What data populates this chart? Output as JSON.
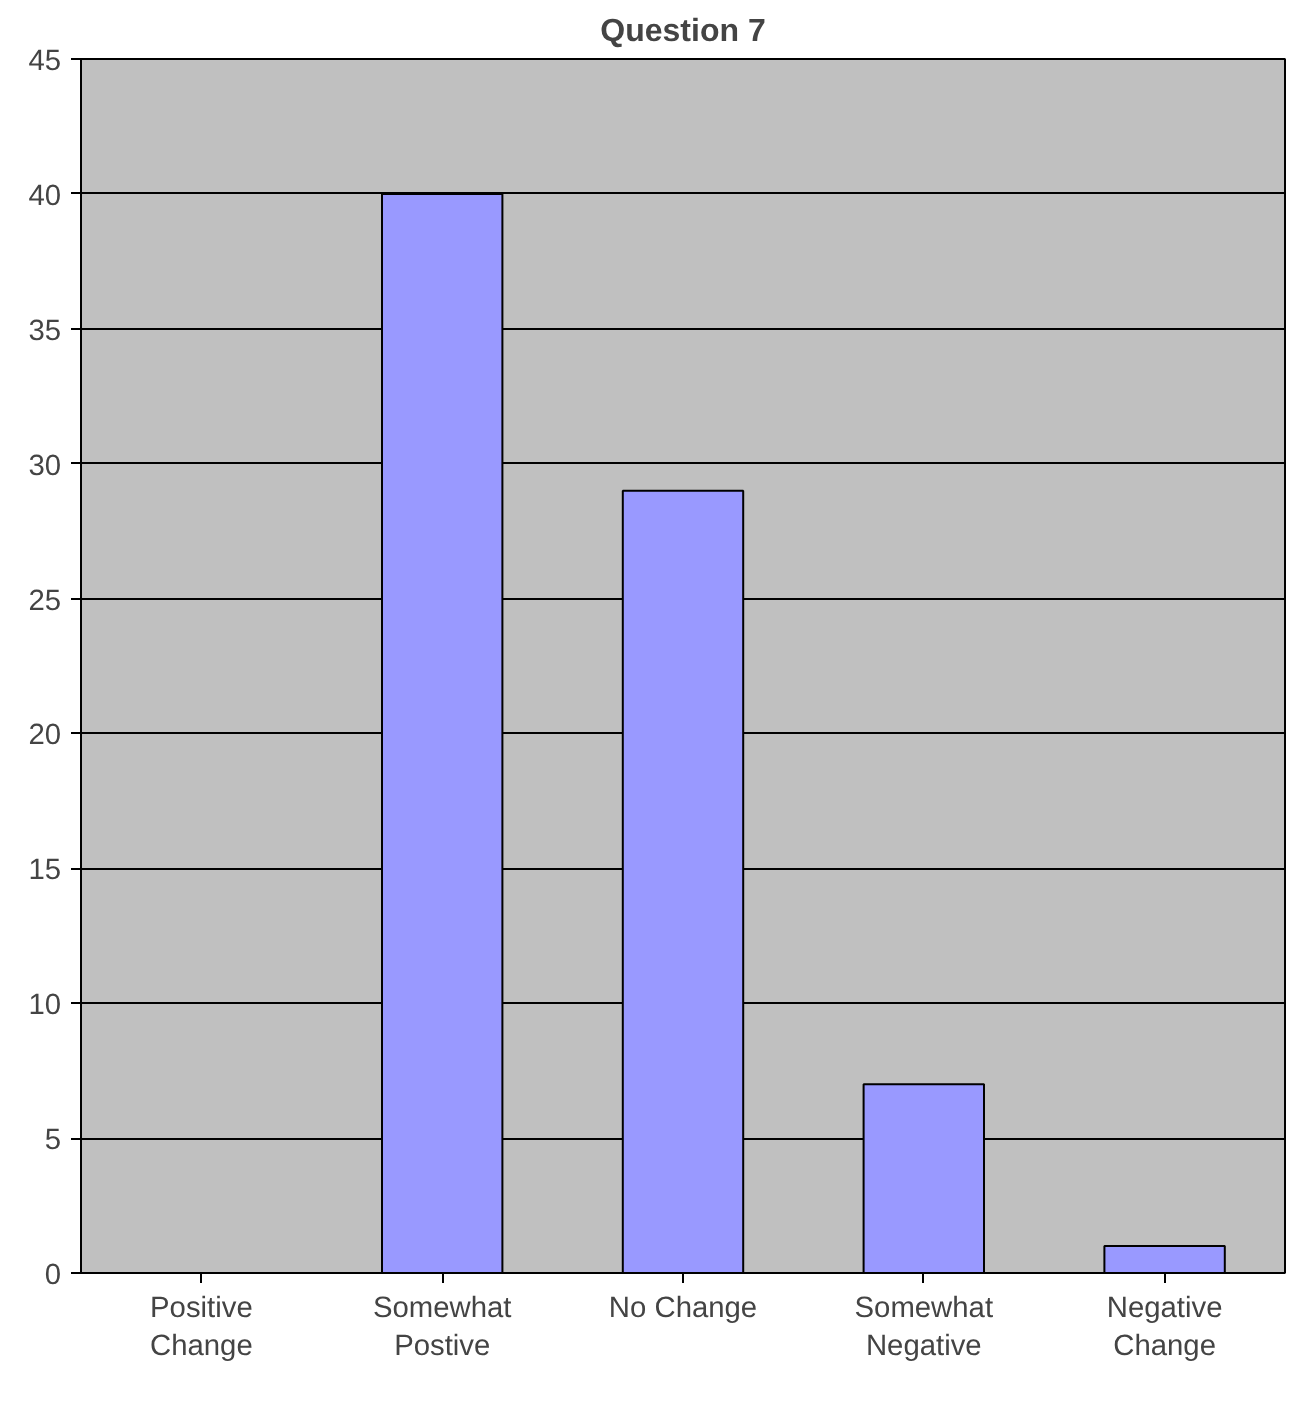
{
  "chart_data": {
    "type": "bar",
    "title": "Question 7",
    "categories": [
      "Positive Change",
      "Somewhat Postive",
      "No Change",
      "Somewhat Negative",
      "Negative Change"
    ],
    "values": [
      0,
      40,
      29,
      7,
      1
    ],
    "color": "#9999ff",
    "ylim": [
      0,
      45
    ],
    "yticks": [
      0,
      5,
      10,
      15,
      20,
      25,
      30,
      35,
      40,
      45
    ],
    "grid": "y"
  }
}
